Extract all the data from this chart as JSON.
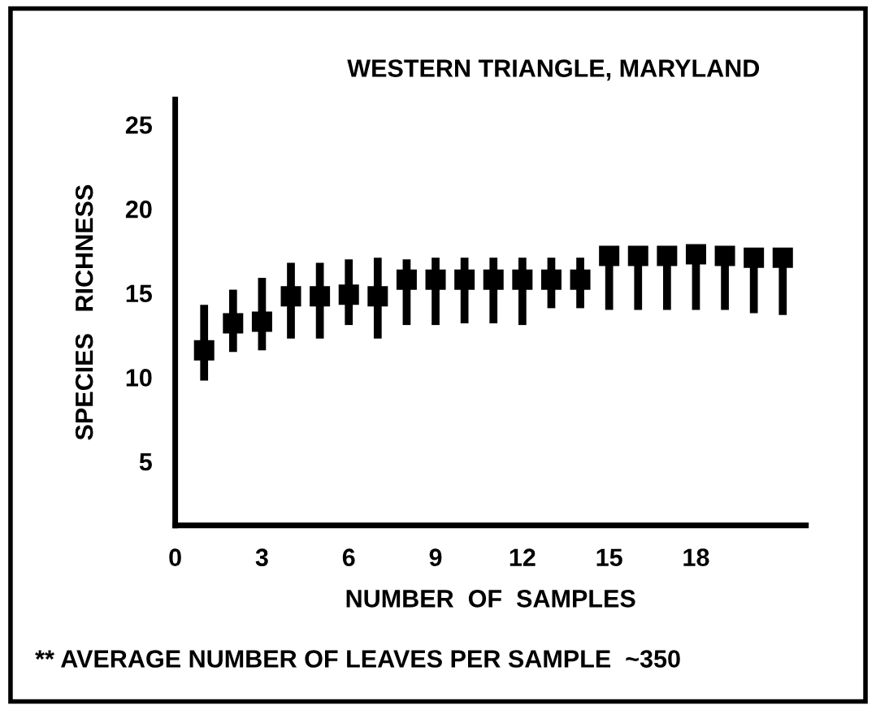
{
  "chart_data": {
    "type": "scatter",
    "title": "WESTERN TRIANGLE, MARYLAND",
    "xlabel": "NUMBER  OF  SAMPLES",
    "ylabel": "SPECIES   RICHNESS",
    "annotations": [
      "** AVERAGE NUMBER OF LEAVES PER SAMPLE  ~350"
    ],
    "x": [
      1,
      2,
      3,
      4,
      5,
      6,
      7,
      8,
      9,
      10,
      11,
      12,
      13,
      14,
      15,
      16,
      17,
      18,
      19,
      20,
      21
    ],
    "values": [
      11.6,
      13.2,
      13.3,
      14.8,
      14.8,
      14.9,
      14.8,
      15.8,
      15.8,
      15.8,
      15.8,
      15.8,
      15.8,
      15.8,
      17.2,
      17.2,
      17.2,
      17.3,
      17.2,
      17.1,
      17.1
    ],
    "errors": [
      [
        9.8,
        14.3
      ],
      [
        11.5,
        15.2
      ],
      [
        11.6,
        15.9
      ],
      [
        12.3,
        16.8
      ],
      [
        12.3,
        16.8
      ],
      [
        13.1,
        17.0
      ],
      [
        12.3,
        17.1
      ],
      [
        13.1,
        17.0
      ],
      [
        13.1,
        17.1
      ],
      [
        13.2,
        17.1
      ],
      [
        13.2,
        17.1
      ],
      [
        13.1,
        17.1
      ],
      [
        14.1,
        17.1
      ],
      [
        14.1,
        17.1
      ],
      [
        14.0,
        17.2
      ],
      [
        14.0,
        17.2
      ],
      [
        14.0,
        17.2
      ],
      [
        14.0,
        17.3
      ],
      [
        14.0,
        17.2
      ],
      [
        13.8,
        17.1
      ],
      [
        13.7,
        17.1
      ]
    ],
    "color": "#000000",
    "marker": "square",
    "xlim": [
      0,
      21.8
    ],
    "ylim": [
      1.2,
      26.5
    ],
    "xticks": [
      0,
      3,
      6,
      9,
      12,
      15,
      18
    ],
    "yticks": [
      5,
      10,
      15,
      20,
      25
    ],
    "grid": false,
    "legend": false
  }
}
